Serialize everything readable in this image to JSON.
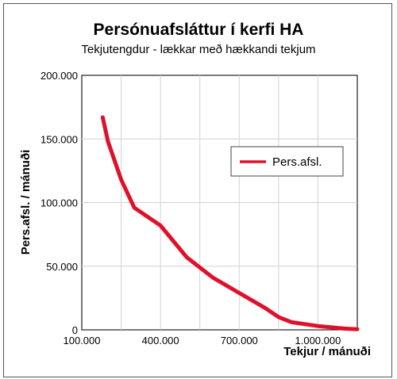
{
  "chart_data": {
    "type": "line",
    "title": "Persónuafsláttur í kerfi HA",
    "subtitle": "Tekjutengdur - lækkar með hækkandi tekjum",
    "xlabel": "Tekjur / mánuði",
    "ylabel": "Pers.afsl. / mánuði",
    "xlim": [
      100000,
      1150000
    ],
    "ylim": [
      0,
      200000
    ],
    "x_ticks": [
      100000,
      400000,
      700000,
      1000000
    ],
    "x_tick_labels": [
      "100.000",
      "400.000",
      "700.000",
      "1.000.000"
    ],
    "y_ticks": [
      0,
      50000,
      100000,
      150000,
      200000
    ],
    "y_tick_labels": [
      "0",
      "50.000",
      "100.000",
      "150.000",
      "200.000"
    ],
    "grid": true,
    "legend_position": "right",
    "series": [
      {
        "name": "Pers.afsl.",
        "color": "#e0102a",
        "x": [
          180000,
          200000,
          250000,
          300000,
          400000,
          500000,
          600000,
          700000,
          800000,
          850000,
          900000,
          1000000,
          1100000,
          1150000
        ],
        "y": [
          167000,
          148000,
          118000,
          96000,
          82000,
          57000,
          41000,
          29000,
          17000,
          10000,
          6000,
          3000,
          1000,
          500
        ]
      }
    ]
  }
}
